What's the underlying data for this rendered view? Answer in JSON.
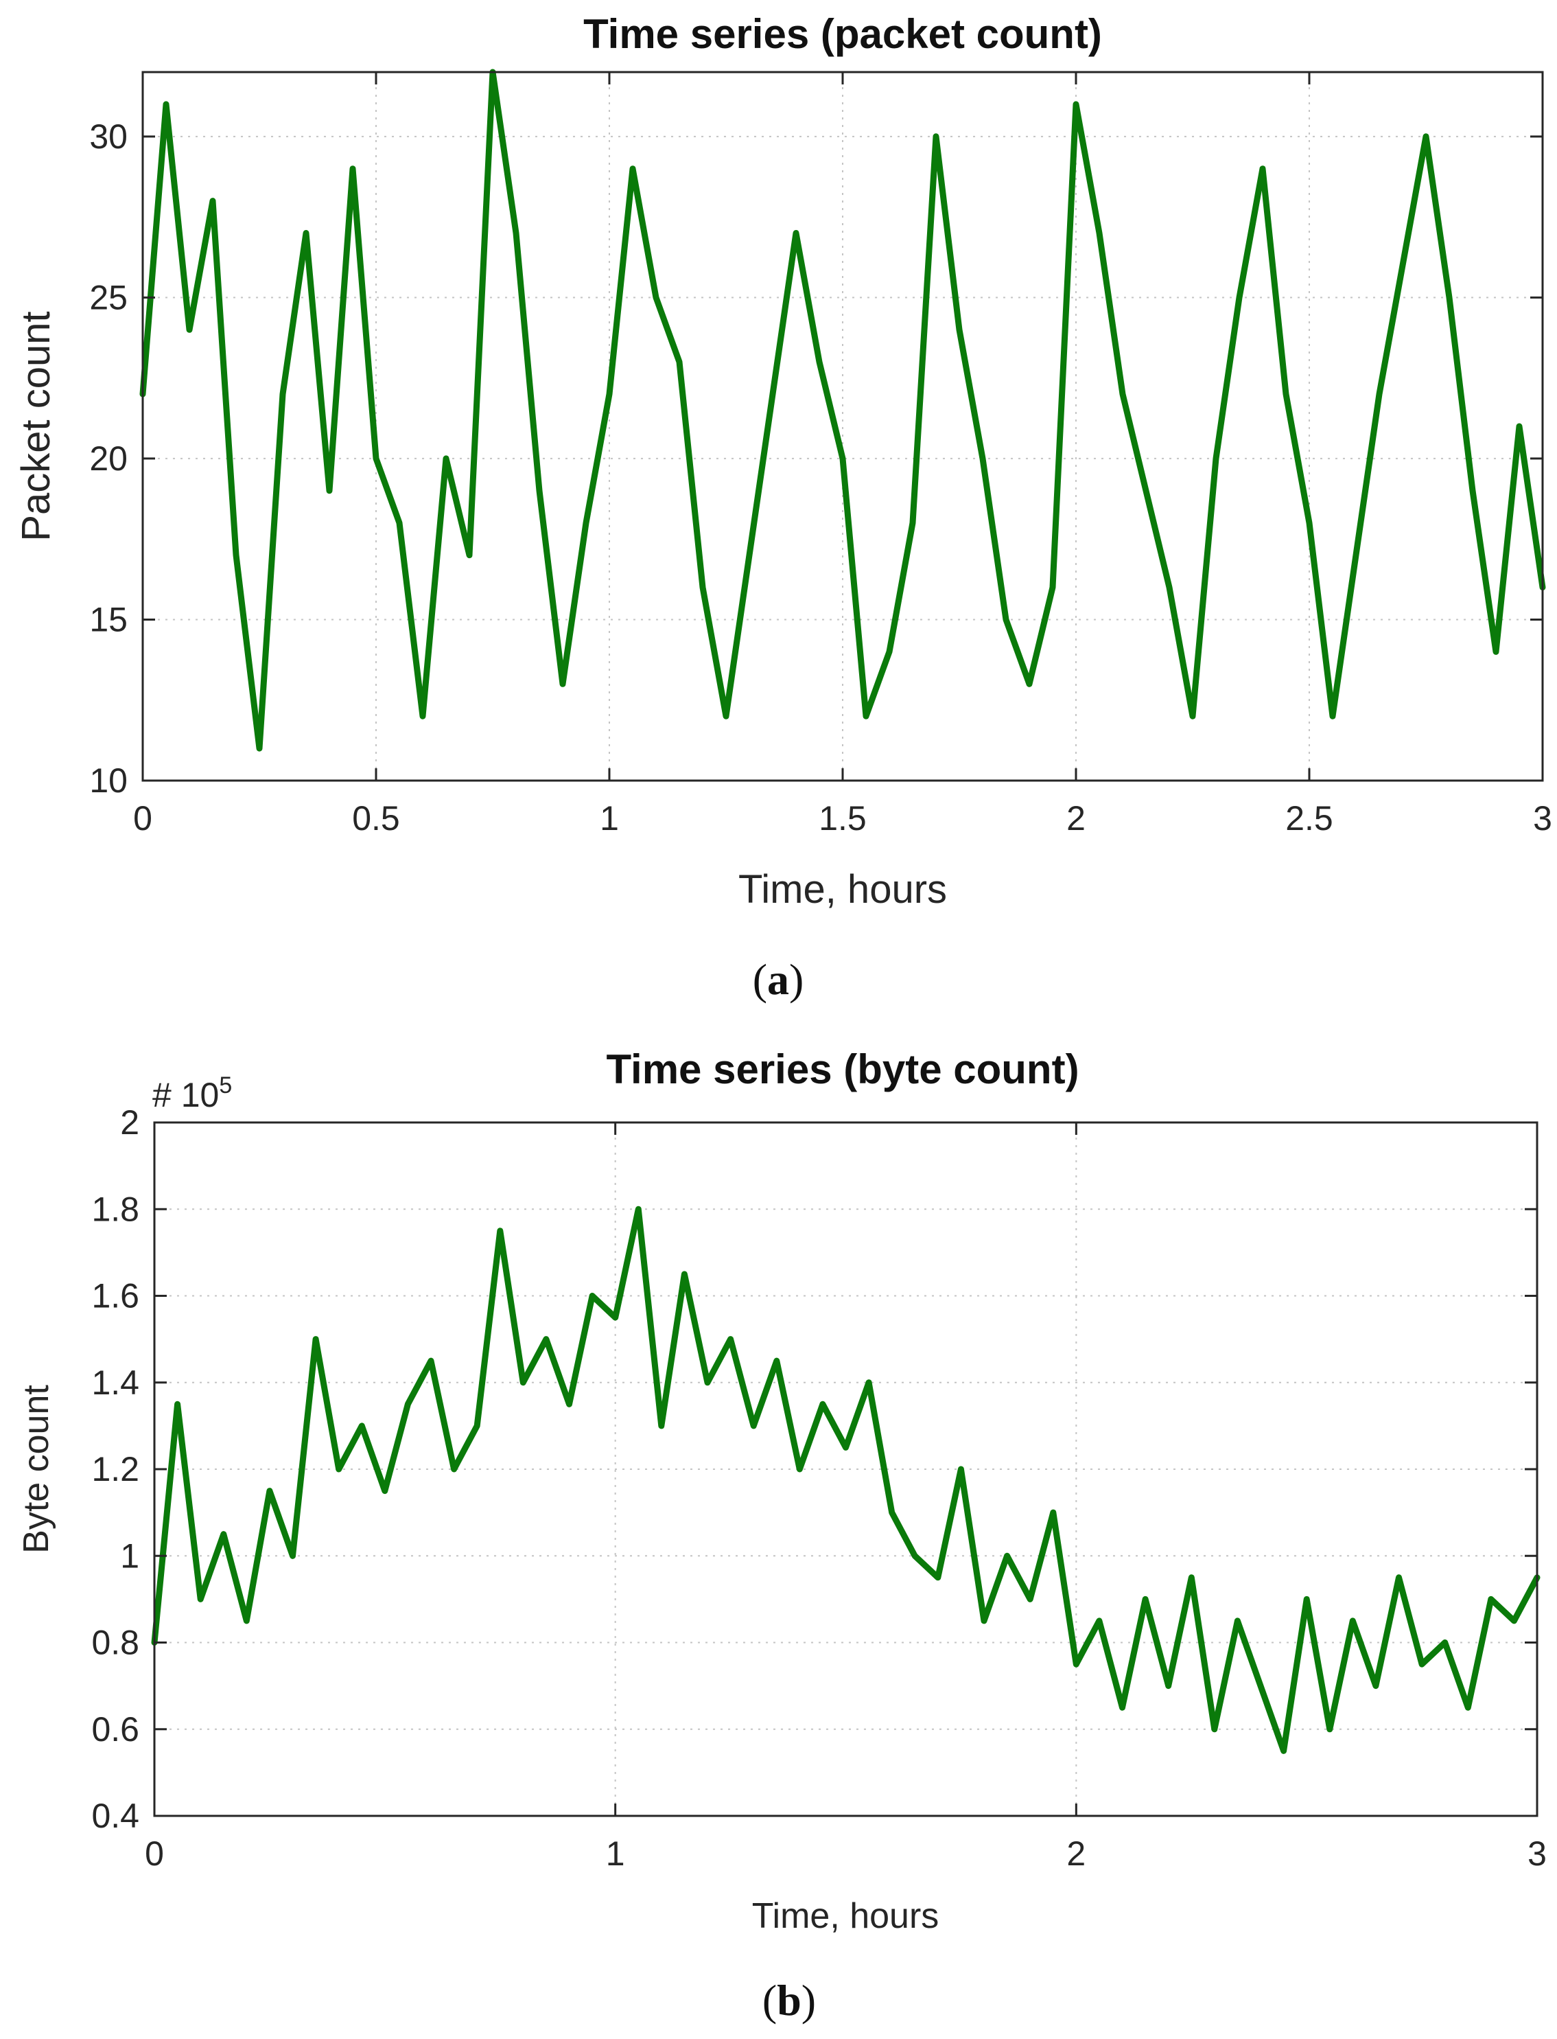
{
  "chart_data": [
    {
      "type": "line",
      "title": "Time series (packet count)",
      "xlabel": "Time, hours",
      "ylabel": "Packet count",
      "caption_letter": "a",
      "xlim": [
        0,
        3
      ],
      "ylim": [
        10,
        32
      ],
      "xticks": [
        0,
        0.5,
        1,
        1.5,
        2,
        2.5,
        3
      ],
      "xtick_labels": [
        "0",
        "0.5",
        "1",
        "1.5",
        "2",
        "2.5",
        "3"
      ],
      "yticks": [
        10,
        15,
        20,
        25,
        30
      ],
      "ytick_labels": [
        "10",
        "15",
        "20",
        "25",
        "30"
      ],
      "grid": true,
      "line_color": "#0a7a0a",
      "x": [
        0,
        0.05,
        0.1,
        0.15,
        0.2,
        0.25,
        0.3,
        0.35,
        0.4,
        0.45,
        0.5,
        0.55,
        0.6,
        0.65,
        0.7,
        0.75,
        0.8,
        0.85,
        0.9,
        0.95,
        1.0,
        1.05,
        1.1,
        1.15,
        1.2,
        1.25,
        1.3,
        1.35,
        1.4,
        1.45,
        1.5,
        1.55,
        1.6,
        1.65,
        1.7,
        1.75,
        1.8,
        1.85,
        1.9,
        1.95,
        2.0,
        2.05,
        2.1,
        2.15,
        2.2,
        2.25,
        2.3,
        2.35,
        2.4,
        2.45,
        2.5,
        2.55,
        2.6,
        2.65,
        2.7,
        2.75,
        2.8,
        2.85,
        2.9,
        2.95,
        3.0
      ],
      "y": [
        22,
        31,
        24,
        28,
        17,
        11,
        22,
        27,
        19,
        29,
        20,
        18,
        12,
        20,
        17,
        32,
        27,
        19,
        13,
        18,
        22,
        29,
        25,
        23,
        16,
        12,
        17,
        22,
        27,
        23,
        20,
        12,
        14,
        18,
        30,
        24,
        20,
        15,
        13,
        16,
        31,
        27,
        22,
        19,
        16,
        12,
        20,
        25,
        29,
        22,
        18,
        12,
        17,
        22,
        26,
        30,
        25,
        19,
        14,
        21,
        16
      ]
    },
    {
      "type": "line",
      "title": "Time series (byte count)",
      "xlabel": "Time, hours",
      "ylabel": "Byte count",
      "caption_letter": "b",
      "exponent_label": "# 10",
      "exponent_power": "5",
      "xlim": [
        0,
        3
      ],
      "ylim": [
        0.4,
        2.0
      ],
      "xticks": [
        0,
        1,
        2,
        3
      ],
      "xtick_labels": [
        "0",
        "1",
        "2",
        "3"
      ],
      "yticks": [
        0.4,
        0.6,
        0.8,
        1.0,
        1.2,
        1.4,
        1.6,
        1.8,
        2.0
      ],
      "ytick_labels": [
        "0.4",
        "0.6",
        "0.8",
        "1",
        "1.2",
        "1.4",
        "1.6",
        "1.8",
        "2"
      ],
      "grid": true,
      "line_color": "#0a7a0a",
      "x": [
        0,
        0.05,
        0.1,
        0.15,
        0.2,
        0.25,
        0.3,
        0.35,
        0.4,
        0.45,
        0.5,
        0.55,
        0.6,
        0.65,
        0.7,
        0.75,
        0.8,
        0.85,
        0.9,
        0.95,
        1.0,
        1.05,
        1.1,
        1.15,
        1.2,
        1.25,
        1.3,
        1.35,
        1.4,
        1.45,
        1.5,
        1.55,
        1.6,
        1.65,
        1.7,
        1.75,
        1.8,
        1.85,
        1.9,
        1.95,
        2.0,
        2.05,
        2.1,
        2.15,
        2.2,
        2.25,
        2.3,
        2.35,
        2.4,
        2.45,
        2.5,
        2.55,
        2.6,
        2.65,
        2.7,
        2.75,
        2.8,
        2.85,
        2.9,
        2.95,
        3.0
      ],
      "y": [
        0.8,
        1.35,
        0.9,
        1.05,
        0.85,
        1.15,
        1.0,
        1.5,
        1.2,
        1.3,
        1.15,
        1.35,
        1.45,
        1.2,
        1.3,
        1.75,
        1.4,
        1.5,
        1.35,
        1.6,
        1.55,
        1.8,
        1.3,
        1.65,
        1.4,
        1.5,
        1.3,
        1.45,
        1.2,
        1.35,
        1.25,
        1.4,
        1.1,
        1.0,
        0.95,
        1.2,
        0.85,
        1.0,
        0.9,
        1.1,
        0.75,
        0.85,
        0.65,
        0.9,
        0.7,
        0.95,
        0.6,
        0.85,
        0.7,
        0.55,
        0.9,
        0.6,
        0.85,
        0.7,
        0.95,
        0.75,
        0.8,
        0.65,
        0.9,
        0.85,
        0.95
      ]
    }
  ]
}
